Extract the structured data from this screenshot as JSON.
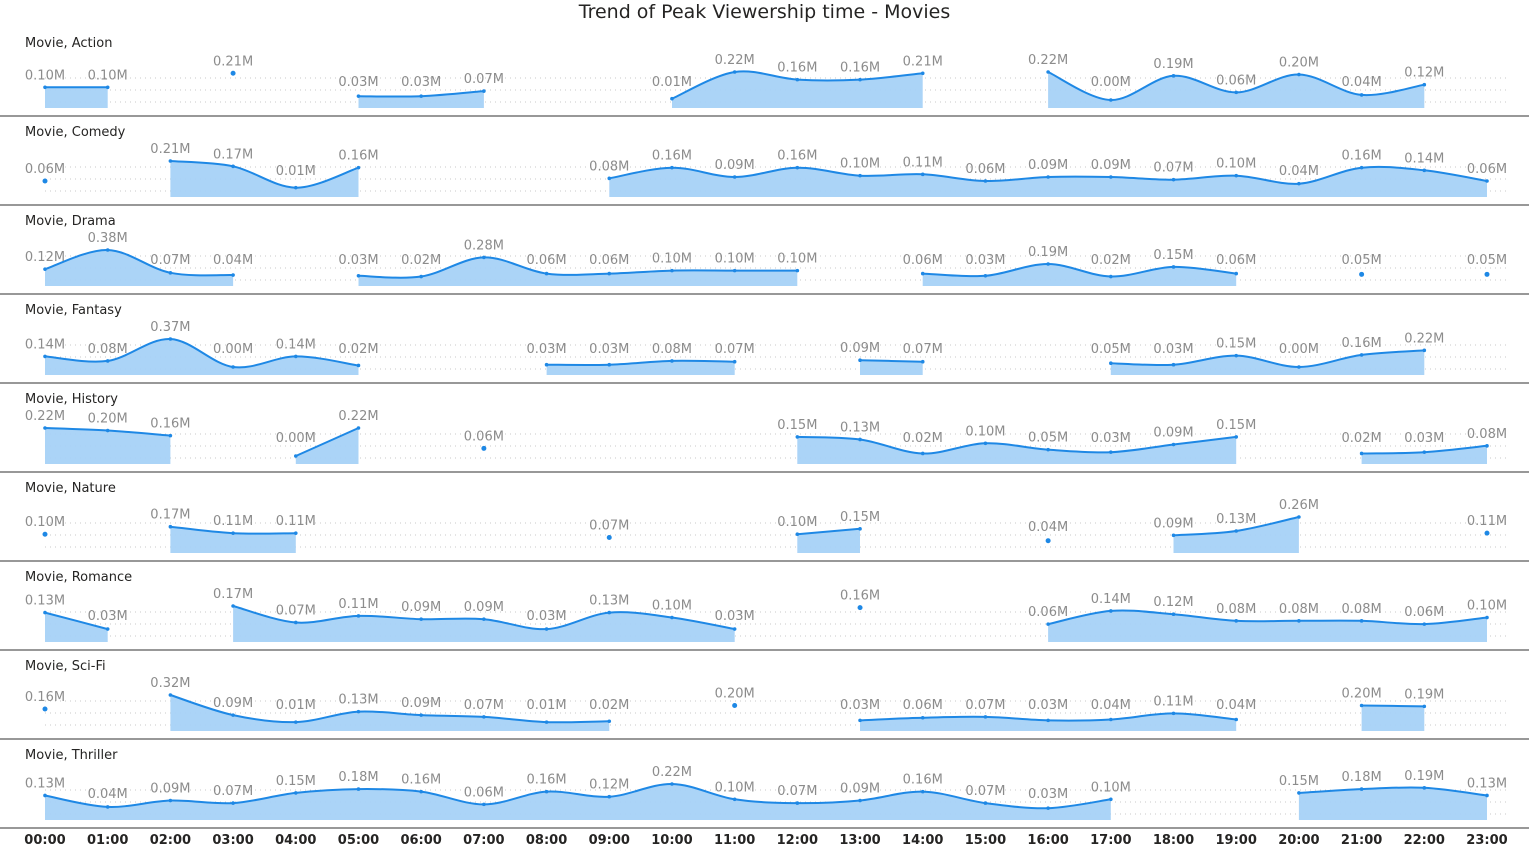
{
  "chart_data": {
    "type": "area",
    "title": "Trend of Peak Viewership time - Movies",
    "x": [
      "00:00",
      "01:00",
      "02:00",
      "03:00",
      "04:00",
      "05:00",
      "06:00",
      "07:00",
      "08:00",
      "09:00",
      "10:00",
      "11:00",
      "12:00",
      "13:00",
      "14:00",
      "15:00",
      "16:00",
      "17:00",
      "18:00",
      "19:00",
      "20:00",
      "21:00",
      "22:00",
      "23:00"
    ],
    "series": [
      {
        "name": "Movie, Action",
        "values": [
          0.1,
          0.1,
          null,
          0.21,
          null,
          0.03,
          0.03,
          0.07,
          null,
          null,
          0.01,
          0.22,
          0.16,
          0.16,
          0.21,
          null,
          0.22,
          0.0,
          0.19,
          0.06,
          0.2,
          0.04,
          0.12,
          null
        ]
      },
      {
        "name": "Movie, Comedy",
        "values": [
          0.06,
          null,
          0.21,
          0.17,
          0.01,
          0.16,
          null,
          null,
          null,
          0.08,
          0.16,
          0.09,
          0.16,
          0.1,
          0.11,
          0.06,
          0.09,
          0.09,
          0.07,
          0.1,
          0.04,
          0.16,
          0.14,
          0.06
        ]
      },
      {
        "name": "Movie, Drama",
        "values": [
          0.12,
          0.38,
          0.07,
          0.04,
          null,
          0.03,
          0.02,
          0.28,
          0.06,
          0.06,
          0.1,
          0.1,
          0.1,
          null,
          0.06,
          0.03,
          0.19,
          0.02,
          0.15,
          0.06,
          null,
          0.05,
          null,
          0.05
        ]
      },
      {
        "name": "Movie, Fantasy",
        "values": [
          0.14,
          0.08,
          0.37,
          0.0,
          0.14,
          0.02,
          null,
          null,
          0.03,
          0.03,
          0.08,
          0.07,
          null,
          0.09,
          0.07,
          null,
          null,
          0.05,
          0.03,
          0.15,
          0.0,
          0.16,
          0.22,
          null
        ]
      },
      {
        "name": "Movie, History",
        "values": [
          0.22,
          0.2,
          0.16,
          null,
          0.0,
          0.22,
          null,
          0.06,
          null,
          null,
          null,
          null,
          0.15,
          0.13,
          0.02,
          0.1,
          0.05,
          0.03,
          0.09,
          0.15,
          null,
          0.02,
          0.03,
          0.08
        ]
      },
      {
        "name": "Movie, Nature",
        "values": [
          0.1,
          null,
          0.17,
          0.11,
          0.11,
          null,
          null,
          null,
          null,
          0.07,
          null,
          null,
          0.1,
          0.15,
          null,
          null,
          0.04,
          null,
          0.09,
          0.13,
          0.26,
          null,
          null,
          0.11
        ]
      },
      {
        "name": "Movie, Romance",
        "values": [
          0.13,
          0.03,
          null,
          0.17,
          0.07,
          0.11,
          0.09,
          0.09,
          0.03,
          0.13,
          0.1,
          0.03,
          null,
          0.16,
          null,
          null,
          0.06,
          0.14,
          0.12,
          0.08,
          0.08,
          0.08,
          0.06,
          0.1
        ]
      },
      {
        "name": "Movie, Sci-Fi",
        "values": [
          0.16,
          null,
          0.32,
          0.09,
          0.01,
          0.13,
          0.09,
          0.07,
          0.01,
          0.02,
          null,
          0.2,
          null,
          0.03,
          0.06,
          0.07,
          0.03,
          0.04,
          0.11,
          0.04,
          null,
          0.2,
          0.19,
          null
        ]
      },
      {
        "name": "Movie, Thriller",
        "values": [
          0.13,
          0.04,
          0.09,
          0.07,
          0.15,
          0.18,
          0.16,
          0.06,
          0.16,
          0.12,
          0.22,
          0.1,
          0.07,
          0.09,
          0.16,
          0.07,
          0.03,
          0.1,
          null,
          null,
          0.15,
          0.18,
          0.19,
          0.13
        ]
      }
    ],
    "value_labels": [
      [
        "0.10M",
        "0.10M",
        null,
        "0.21M",
        null,
        "0.03M",
        "0.03M",
        "0.07M",
        null,
        null,
        "0.01M",
        "0.22M",
        "0.16M",
        "0.16M",
        "0.21M",
        null,
        "0.22M",
        "0.00M",
        "0.19M",
        "0.06M",
        "0.20M",
        "0.04M",
        "0.12M",
        null
      ],
      [
        "0.06M",
        null,
        "0.21M",
        "0.17M",
        "0.01M",
        "0.16M",
        null,
        null,
        null,
        "0.08M",
        "0.16M",
        "0.09M",
        "0.16M",
        "0.10M",
        "0.11M",
        "0.06M",
        "0.09M",
        "0.09M",
        "0.07M",
        "0.10M",
        "0.04M",
        "0.16M",
        "0.14M",
        "0.06M"
      ],
      [
        "0.12M",
        "0.38M",
        "0.07M",
        "0.04M",
        null,
        "0.03M",
        "0.02M",
        "0.28M",
        "0.06M",
        "0.06M",
        "0.10M",
        "0.10M",
        "0.10M",
        null,
        "0.06M",
        "0.03M",
        "0.19M",
        "0.02M",
        "0.15M",
        "0.06M",
        null,
        "0.05M",
        null,
        "0.05M"
      ],
      [
        "0.14M",
        "0.08M",
        "0.37M",
        "0.00M",
        "0.14M",
        "0.02M",
        null,
        null,
        "0.03M",
        "0.03M",
        "0.08M",
        "0.07M",
        null,
        "0.09M",
        "0.07M",
        null,
        null,
        "0.05M",
        "0.03M",
        "0.15M",
        "0.00M",
        "0.16M",
        "0.22M",
        null
      ],
      [
        "0.22M",
        "0.20M",
        "0.16M",
        null,
        "0.00M",
        "0.22M",
        null,
        "0.06M",
        null,
        null,
        null,
        null,
        "0.15M",
        "0.13M",
        "0.02M",
        "0.10M",
        "0.05M",
        "0.03M",
        "0.09M",
        "0.15M",
        null,
        "0.02M",
        "0.03M",
        "0.08M"
      ],
      [
        "0.10M",
        null,
        "0.17M",
        "0.11M",
        "0.11M",
        null,
        null,
        null,
        null,
        "0.07M",
        null,
        null,
        "0.10M",
        "0.15M",
        null,
        null,
        "0.04M",
        null,
        "0.09M",
        "0.13M",
        "0.26M",
        null,
        null,
        "0.11M"
      ],
      [
        "0.13M",
        "0.03M",
        null,
        "0.17M",
        "0.07M",
        "0.11M",
        "0.09M",
        "0.09M",
        "0.03M",
        "0.13M",
        "0.10M",
        "0.03M",
        null,
        "0.16M",
        null,
        null,
        "0.06M",
        "0.14M",
        "0.12M",
        "0.08M",
        "0.08M",
        "0.08M",
        "0.06M",
        "0.10M"
      ],
      [
        "0.16M",
        null,
        "0.32M",
        "0.09M",
        "0.01M",
        "0.13M",
        "0.09M",
        "0.07M",
        "0.01M",
        "0.02M",
        null,
        "0.20M",
        null,
        "0.03M",
        "0.06M",
        "0.07M",
        "0.03M",
        "0.04M",
        "0.11M",
        "0.04M",
        null,
        "0.20M",
        "0.19M",
        null
      ],
      [
        "0.13M",
        "0.04M",
        "0.09M",
        "0.07M",
        "0.15M",
        "0.18M",
        "0.16M",
        "0.06M",
        "0.16M",
        "0.12M",
        "0.22M",
        "0.10M",
        "0.07M",
        "0.09M",
        "0.16M",
        "0.07M",
        "0.03M",
        "0.10M",
        null,
        null,
        "0.15M",
        "0.18M",
        "0.19M",
        "0.13M"
      ]
    ],
    "grid": true,
    "colors": {
      "line": "#1e88e5",
      "area": "#a6d2f7",
      "label": "#8c8c8c",
      "separator": "#5a5a5a",
      "grid": "#c8c8c8"
    }
  }
}
